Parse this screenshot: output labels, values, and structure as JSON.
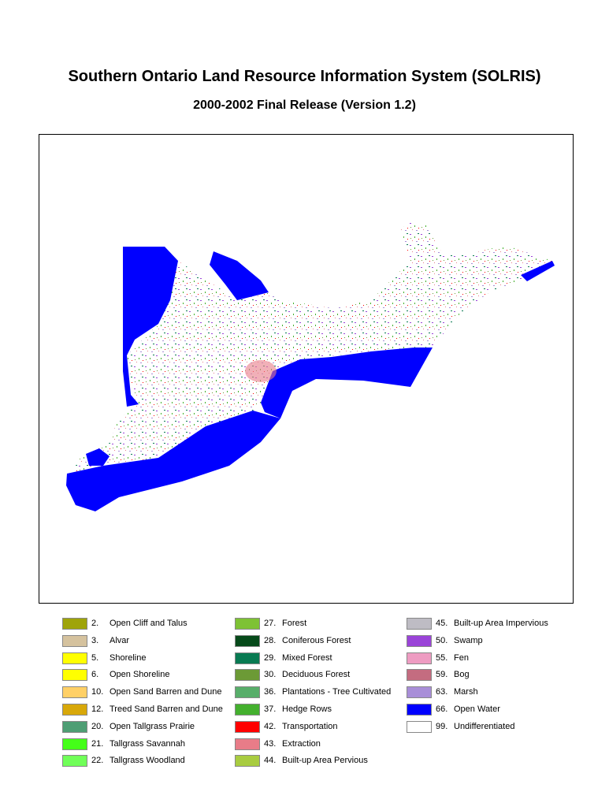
{
  "title": "Southern Ontario Land Resource Information System (SOLRIS)",
  "subtitle": "2000-2002 Final Release (Version 1.2)",
  "map_colors": {
    "water": "#0000FF",
    "land": "#FFFFFF"
  },
  "legend": [
    [
      {
        "code": "2.",
        "label": "Open Cliff and Talus",
        "color": "#9FA40A"
      },
      {
        "code": "3.",
        "label": "Alvar",
        "color": "#D5C29E"
      },
      {
        "code": "5.",
        "label": "Shoreline",
        "color": "#FFFF00"
      },
      {
        "code": "6.",
        "label": "Open Shoreline",
        "color": "#FFFF00"
      },
      {
        "code": "10.",
        "label": "Open Sand Barren and Dune",
        "color": "#FFD066"
      },
      {
        "code": "12.",
        "label": "Treed Sand Barren and Dune",
        "color": "#D8A80A"
      },
      {
        "code": "20.",
        "label": "Open Tallgrass Prairie",
        "color": "#4E9E74"
      },
      {
        "code": "21.",
        "label": "Tallgrass Savannah",
        "color": "#44FF18"
      },
      {
        "code": "22.",
        "label": "Tallgrass Woodland",
        "color": "#70FF58"
      }
    ],
    [
      {
        "code": "27.",
        "label": "Forest",
        "color": "#7EC234"
      },
      {
        "code": "28.",
        "label": "Coniferous Forest",
        "color": "#064A1A"
      },
      {
        "code": "29.",
        "label": "Mixed Forest",
        "color": "#087A52"
      },
      {
        "code": "30.",
        "label": "Deciduous Forest",
        "color": "#6C9A36"
      },
      {
        "code": "36.",
        "label": "Plantations - Tree Cultivated",
        "color": "#58AE6A"
      },
      {
        "code": "37.",
        "label": "Hedge Rows",
        "color": "#44B02E"
      },
      {
        "code": "42.",
        "label": "Transportation",
        "color": "#FF0000"
      },
      {
        "code": "43.",
        "label": "Extraction",
        "color": "#E87C88"
      },
      {
        "code": "44.",
        "label": "Built-up Area Pervious",
        "color": "#A8CC40"
      }
    ],
    [
      {
        "code": "45.",
        "label": "Built-up Area Impervious",
        "color": "#BEBCC4"
      },
      {
        "code": "50.",
        "label": "Swamp",
        "color": "#9A44D8"
      },
      {
        "code": "55.",
        "label": "Fen",
        "color": "#EE9CC2"
      },
      {
        "code": "59.",
        "label": "Bog",
        "color": "#C46C80"
      },
      {
        "code": "63.",
        "label": "Marsh",
        "color": "#A88ED8"
      },
      {
        "code": "66.",
        "label": "Open Water",
        "color": "#0000FF"
      },
      {
        "code": "99.",
        "label": "Undifferentiated",
        "color": "#FFFFFF"
      }
    ]
  ]
}
